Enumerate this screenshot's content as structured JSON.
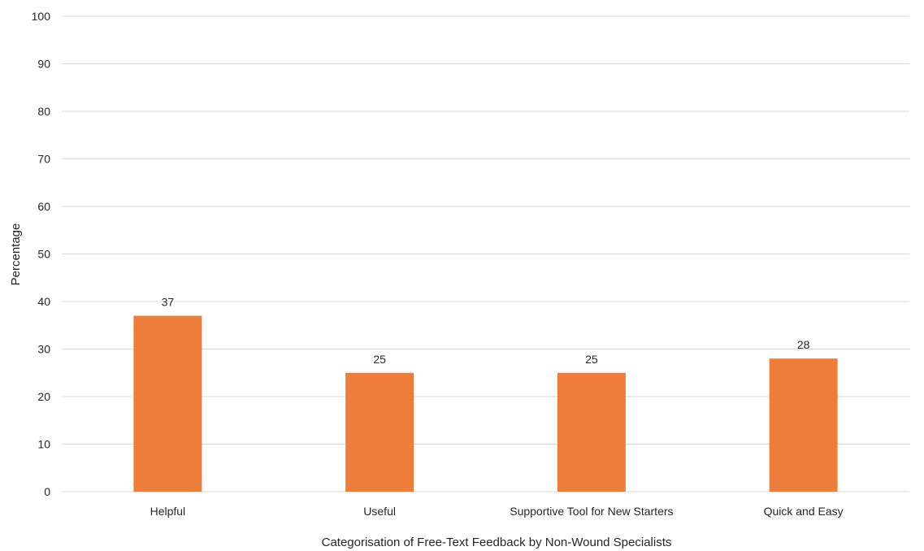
{
  "chart_data": {
    "type": "bar",
    "categories": [
      "Helpful",
      "Useful",
      "Supportive Tool for New Starters",
      "Quick and Easy"
    ],
    "values": [
      37,
      25,
      25,
      28
    ],
    "title": "",
    "xlabel": "Categorisation of Free-Text Feedback by Non-Wound Specialists",
    "ylabel": "Percentage",
    "ylim": [
      0,
      100
    ],
    "yticks": [
      0,
      10,
      20,
      30,
      40,
      50,
      60,
      70,
      80,
      90,
      100
    ],
    "grid": true,
    "legend": "none",
    "data_labels": true,
    "colors": {
      "bar": "#ed7d3b",
      "grid": "#d9d9d9",
      "text": "#262626"
    }
  }
}
